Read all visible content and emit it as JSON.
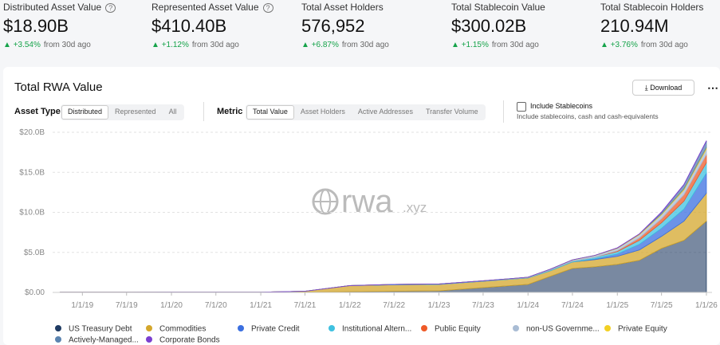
{
  "stats": [
    {
      "label": "Distributed Asset Value",
      "value": "$18.90B",
      "change": "+3.54%",
      "suffix": "from 30d ago"
    },
    {
      "label": "Represented Asset Value",
      "value": "$410.40B",
      "change": "+1.12%",
      "suffix": "from 30d ago"
    },
    {
      "label": "Total Asset Holders",
      "value": "576,952",
      "change": "+6.87%",
      "suffix": "from 30d ago"
    },
    {
      "label": "Total Stablecoin Value",
      "value": "$300.02B",
      "change": "+1.15%",
      "suffix": "from 30d ago"
    },
    {
      "label": "Total Stablecoin Holders",
      "value": "210.94M",
      "change": "+3.76%",
      "suffix": "from 30d ago"
    }
  ],
  "panel": {
    "download": "Download",
    "asset_type": {
      "label": "Asset Type",
      "options": [
        "Distributed",
        "Represented",
        "All"
      ]
    },
    "metric": {
      "label": "Metric",
      "options": [
        "Total Value",
        "Asset Holders",
        "Active Addresses",
        "Transfer Volume"
      ]
    },
    "stablecoins": {
      "label": "Include Stablecoins",
      "note": "Include stablecoins, cash and cash-equivalents"
    },
    "watermark": {
      "main": "rwa",
      "suffix": ".xyz"
    }
  },
  "chart_data": {
    "type": "area",
    "stacked": true,
    "title": "Total RWA Value",
    "grid": true,
    "x": [
      "2018-10-01",
      "2019-01-01",
      "2019-07-01",
      "2020-01-01",
      "2020-07-01",
      "2021-01-01",
      "2021-07-01",
      "2022-01-01",
      "2022-07-01",
      "2023-01-01",
      "2023-07-01",
      "2024-01-01",
      "2024-04-01",
      "2024-07-01",
      "2024-10-01",
      "2025-01-01",
      "2025-04-01",
      "2025-07-01",
      "2025-10-01",
      "2026-01-01"
    ],
    "xlim": [
      "2018-09-01",
      "2026-01-24"
    ],
    "xticks": [
      {
        "value": "2019-01-01",
        "label": "1/1/19"
      },
      {
        "value": "2019-07-01",
        "label": "7/1/19"
      },
      {
        "value": "2020-01-01",
        "label": "1/1/20"
      },
      {
        "value": "2020-07-01",
        "label": "7/1/20"
      },
      {
        "value": "2021-01-01",
        "label": "1/1/21"
      },
      {
        "value": "2021-07-01",
        "label": "7/1/21"
      },
      {
        "value": "2022-01-01",
        "label": "1/1/22"
      },
      {
        "value": "2022-07-01",
        "label": "7/1/22"
      },
      {
        "value": "2023-01-01",
        "label": "1/1/23"
      },
      {
        "value": "2023-07-01",
        "label": "7/1/23"
      },
      {
        "value": "2024-01-01",
        "label": "1/1/24"
      },
      {
        "value": "2024-07-01",
        "label": "7/1/24"
      },
      {
        "value": "2025-01-01",
        "label": "1/1/25"
      },
      {
        "value": "2025-07-01",
        "label": "7/1/25"
      },
      {
        "value": "2026-01-01",
        "label": "1/1/26"
      }
    ],
    "ylim": [
      0,
      20
    ],
    "yticks": [
      {
        "value": 0,
        "label": "$0.00"
      },
      {
        "value": 5,
        "label": "$5.0B"
      },
      {
        "value": 10,
        "label": "$10.0B"
      },
      {
        "value": 15,
        "label": "$15.0B"
      },
      {
        "value": 20,
        "label": "$20.0B"
      }
    ],
    "series": [
      {
        "name": "US Treasury Debt",
        "color": "#1f3b63",
        "values": [
          0.02,
          0.02,
          0.02,
          0.03,
          0.03,
          0.03,
          0.05,
          0.1,
          0.15,
          0.2,
          0.6,
          1.0,
          2.0,
          3.0,
          3.2,
          3.5,
          4.0,
          5.5,
          6.5,
          8.9
        ]
      },
      {
        "name": "Commodities",
        "color": "#d4a72c",
        "values": [
          0,
          0,
          0,
          0,
          0,
          0,
          0.1,
          0.75,
          0.8,
          0.8,
          0.8,
          0.8,
          0.7,
          0.8,
          0.9,
          1.0,
          1.3,
          1.5,
          2.4,
          3.5
        ]
      },
      {
        "name": "Private Credit",
        "color": "#3b6fe0",
        "values": [
          0,
          0,
          0,
          0,
          0,
          0,
          0,
          0,
          0,
          0,
          0,
          0,
          0,
          0,
          0.1,
          0.3,
          0.7,
          1.0,
          1.5,
          2.5
        ]
      },
      {
        "name": "Institutional Altern...",
        "color": "#3fc1e0",
        "values": [
          0,
          0,
          0,
          0,
          0,
          0,
          0,
          0,
          0.05,
          0.05,
          0.05,
          0.05,
          0.1,
          0.1,
          0.2,
          0.3,
          0.5,
          0.7,
          1.0,
          1.3
        ]
      },
      {
        "name": "Public Equity",
        "color": "#ef5a28",
        "values": [
          0,
          0,
          0,
          0,
          0,
          0,
          0,
          0,
          0,
          0,
          0,
          0,
          0,
          0,
          0,
          0.1,
          0.3,
          0.5,
          0.8,
          1.0
        ]
      },
      {
        "name": "non-US Governme...",
        "color": "#a9bcd4",
        "values": [
          0,
          0,
          0,
          0,
          0,
          0,
          0,
          0,
          0,
          0,
          0,
          0.05,
          0.1,
          0.15,
          0.2,
          0.3,
          0.4,
          0.5,
          0.6,
          0.7
        ]
      },
      {
        "name": "Private Equity",
        "color": "#f2d024",
        "values": [
          0,
          0,
          0,
          0,
          0,
          0,
          0,
          0,
          0,
          0,
          0,
          0,
          0,
          0.02,
          0.03,
          0.05,
          0.08,
          0.1,
          0.15,
          0.2
        ]
      },
      {
        "name": "Actively-Managed...",
        "color": "#5b84b0",
        "values": [
          0,
          0,
          0,
          0,
          0,
          0,
          0,
          0,
          0,
          0,
          0,
          0,
          0,
          0,
          0,
          0,
          0,
          0.2,
          0.5,
          0.8
        ]
      },
      {
        "name": "Corporate Bonds",
        "color": "#7b3fd0",
        "values": [
          0,
          0,
          0,
          0,
          0,
          0,
          0,
          0,
          0,
          0,
          0,
          0,
          0,
          0,
          0,
          0.02,
          0.03,
          0.05,
          0.05,
          0.05
        ]
      }
    ]
  }
}
